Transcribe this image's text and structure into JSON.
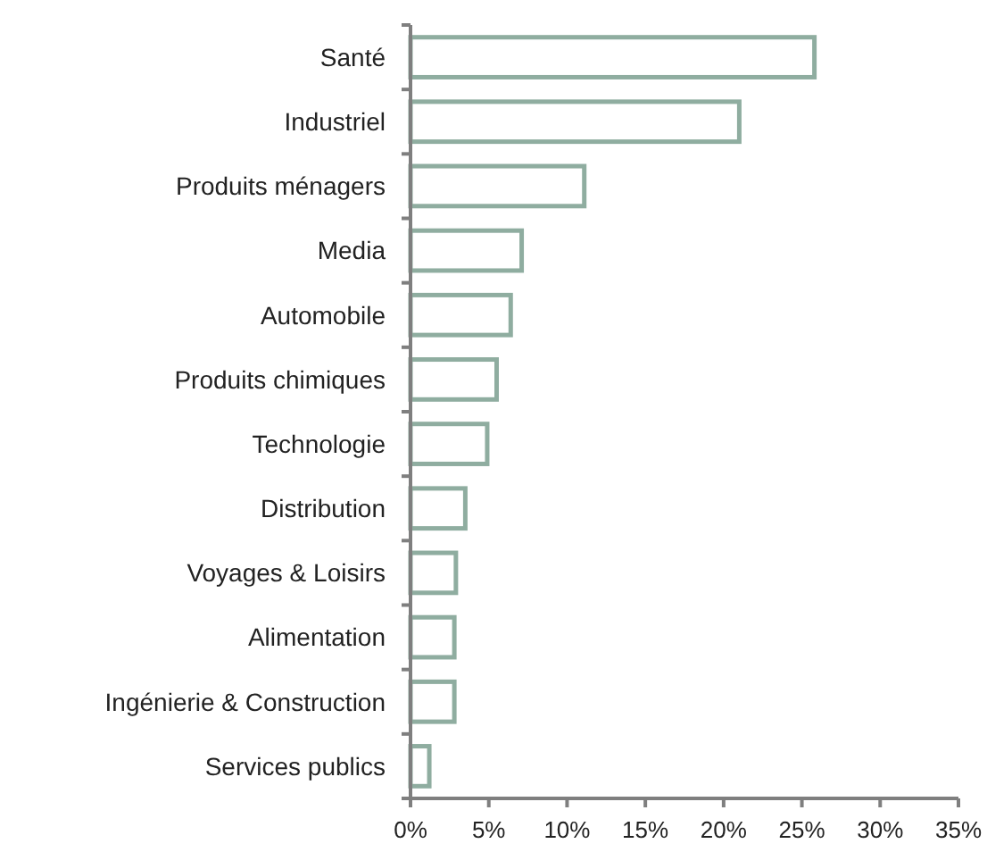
{
  "chart_data": {
    "type": "bar",
    "orientation": "horizontal",
    "categories": [
      "Santé",
      "Industriel",
      "Produits ménagers",
      "Media",
      "Automobile",
      "Produits chimiques",
      "Technologie",
      "Distribution",
      "Voyages & Loisirs",
      "Alimentation",
      "Ingénierie & Construction",
      "Services publics"
    ],
    "values": [
      25.8,
      21.0,
      11.1,
      7.1,
      6.4,
      5.5,
      4.9,
      3.5,
      2.9,
      2.8,
      2.8,
      1.2
    ],
    "color": "#8fada0",
    "xlim": [
      0,
      35
    ],
    "xticks": [
      {
        "value": 0,
        "label": "0%"
      },
      {
        "value": 5,
        "label": "5%"
      },
      {
        "value": 10,
        "label": "10%"
      },
      {
        "value": 15,
        "label": "15%"
      },
      {
        "value": 20,
        "label": "20%"
      },
      {
        "value": 25,
        "label": "25%"
      },
      {
        "value": 30,
        "label": "30%"
      },
      {
        "value": 35,
        "label": "35%"
      }
    ],
    "grid": false
  }
}
